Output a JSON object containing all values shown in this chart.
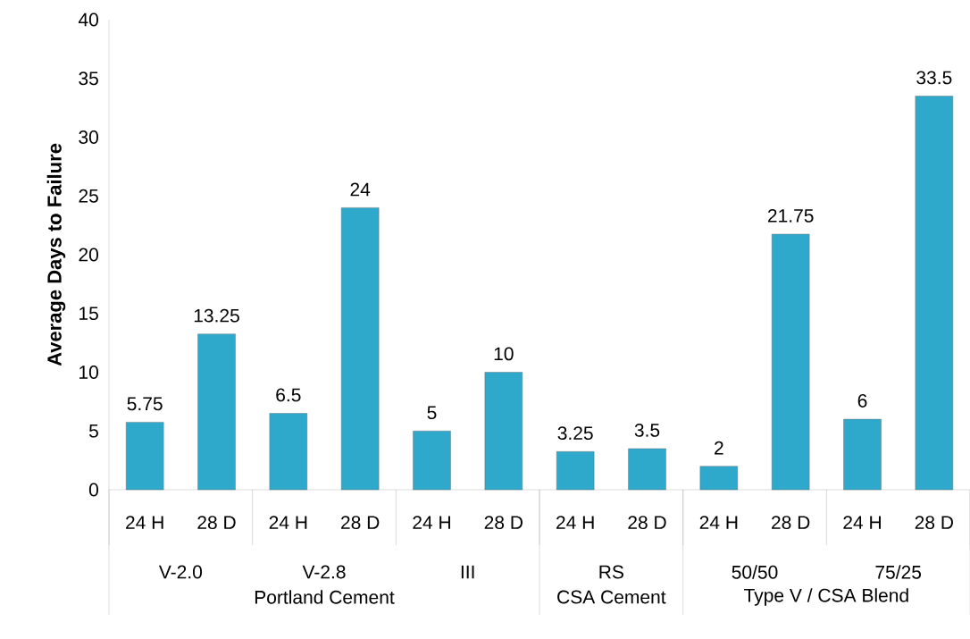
{
  "chart_data": {
    "type": "bar",
    "ylabel": "Average Days to Failure",
    "categories": [
      "24 H",
      "28 D",
      "24 H",
      "28 D",
      "24 H",
      "28 D",
      "24 H",
      "28 D",
      "24 H",
      "28 D",
      "24 H",
      "28 D"
    ],
    "values": [
      5.75,
      13.25,
      6.5,
      24,
      5,
      10,
      3.25,
      3.5,
      2,
      21.75,
      6,
      33.5
    ],
    "color": "#2fa9cb",
    "ylim": [
      0,
      40
    ],
    "yticks": [
      0,
      5,
      10,
      15,
      20,
      25,
      30,
      35,
      40
    ],
    "data_labels": true,
    "annotations": [
      "V-2.0",
      "V-2.8",
      "III",
      "RS",
      "50/50",
      "75/25",
      "Portland Cement",
      "CSA Cement",
      "Type V / CSA Blend"
    ]
  }
}
